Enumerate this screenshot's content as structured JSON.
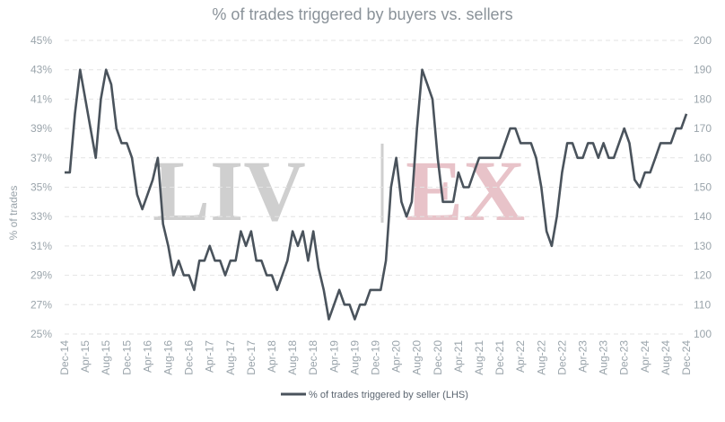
{
  "chart_data": {
    "type": "line",
    "title": "% of trades triggered by buyers vs. sellers",
    "ylabel": "% of trades",
    "ylim": [
      25,
      45
    ],
    "y2lim": [
      100,
      200
    ],
    "yticks": [
      "25%",
      "27%",
      "29%",
      "31%",
      "33%",
      "35%",
      "37%",
      "39%",
      "41%",
      "43%",
      "45%"
    ],
    "y2ticks": [
      "100",
      "110",
      "120",
      "130",
      "140",
      "150",
      "160",
      "170",
      "180",
      "190",
      "200"
    ],
    "xticks": [
      "Dec-14",
      "Apr-15",
      "Aug-15",
      "Dec-15",
      "Apr-16",
      "Aug-16",
      "Dec-16",
      "Apr-17",
      "Aug-17",
      "Dec-17",
      "Apr-18",
      "Aug-18",
      "Dec-18",
      "Apr-19",
      "Aug-19",
      "Dec-19",
      "Apr-20",
      "Aug-20",
      "Dec-20",
      "Apr-21",
      "Aug-21",
      "Dec-21",
      "Apr-22",
      "Aug-22",
      "Dec-22",
      "Apr-23",
      "Aug-23",
      "Dec-23",
      "Apr-24",
      "Aug-24",
      "Dec-24"
    ],
    "x_start": "Dec-14",
    "x_end": "Dec-24",
    "grid": true,
    "legend_position": "bottom",
    "watermark": [
      "LIV",
      "EX"
    ],
    "colors": {
      "line": "#4a535c",
      "grid": "#e3e3e3",
      "watermark_grey": "#cfcfcf",
      "watermark_red": "#e8c3c9"
    },
    "series": [
      {
        "name": "% of trades triggered by seller (LHS)",
        "values": [
          36,
          36,
          40,
          43,
          41,
          39,
          37,
          41,
          43,
          42,
          39,
          38,
          38,
          37,
          34.5,
          33.5,
          34.5,
          35.5,
          37,
          32.5,
          31,
          29,
          30,
          29,
          29,
          28,
          30,
          30,
          31,
          30,
          30,
          29,
          30,
          30,
          32,
          31,
          32,
          30,
          30,
          29,
          29,
          28,
          29,
          30,
          32,
          31,
          32,
          30,
          32,
          29.5,
          28,
          26,
          27,
          28,
          27,
          27,
          26,
          27,
          27,
          28,
          28,
          28,
          30,
          35,
          37,
          34,
          33,
          34,
          39,
          43,
          42,
          41,
          37,
          34,
          34,
          34,
          36,
          35,
          35,
          36,
          37,
          37,
          37,
          37,
          37,
          38,
          39,
          39,
          38,
          38,
          38,
          37,
          35,
          32,
          31,
          33,
          36,
          38,
          38,
          37,
          37,
          38,
          38,
          37,
          38,
          37,
          37,
          38,
          39,
          38,
          35.5,
          35,
          36,
          36,
          37,
          38,
          38,
          38,
          39,
          39,
          40
        ]
      }
    ]
  }
}
